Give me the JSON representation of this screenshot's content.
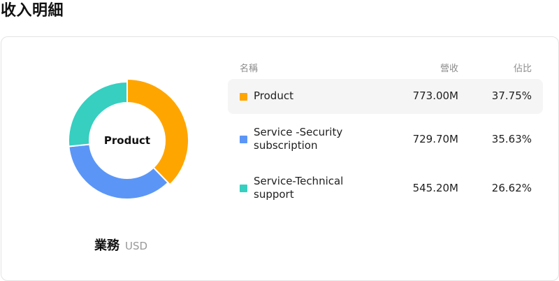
{
  "page": {
    "title": "收入明細"
  },
  "segment": {
    "name": "業務",
    "currency": "USD"
  },
  "table": {
    "headers": {
      "name": "名稱",
      "revenue": "營收",
      "share": "佔比"
    },
    "rows": [
      {
        "name": "Product",
        "revenue": "773.00M",
        "share": "37.75%",
        "color": "#FFA500",
        "selected": true
      },
      {
        "name": "Service -Security subscription",
        "revenue": "729.70M",
        "share": "35.63%",
        "color": "#5B96F7",
        "selected": false
      },
      {
        "name": "Service-Technical support",
        "revenue": "545.20M",
        "share": "26.62%",
        "color": "#36CFC0",
        "selected": false
      }
    ]
  },
  "chart_data": {
    "type": "pie",
    "center_label": "Product",
    "labels": [
      "Product",
      "Service -Security subscription",
      "Service-Technical support"
    ],
    "values": [
      773.0,
      729.7,
      545.2
    ],
    "shares": [
      37.75,
      35.63,
      26.62
    ],
    "colors": [
      "#FFA500",
      "#5B96F7",
      "#36CFC0"
    ],
    "highlighted": "Product"
  }
}
